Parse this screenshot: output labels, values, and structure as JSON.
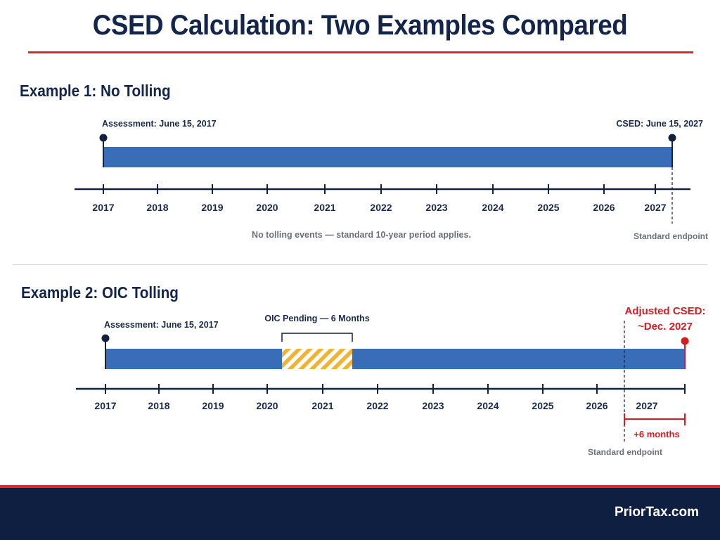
{
  "title": "CSED Calculation: Two Examples Compared",
  "brand": "PriorTax.com",
  "colors": {
    "bar": "#3a6db8",
    "axis": "#14213d",
    "accent_red": "#d01e24",
    "tolling_stripe": "#f2b233",
    "footer": "#0f1f42"
  },
  "example1": {
    "heading": "Example 1: No Tolling",
    "axis_years": [
      "2017",
      "2018",
      "2019",
      "2020",
      "2021",
      "2022",
      "2023",
      "2024",
      "2025",
      "2026",
      "2027"
    ],
    "assessment_label": "Assessment: June 15, 2017",
    "csed_label": "CSED: June 15, 2027",
    "note": "No tolling events — standard 10-year period applies.",
    "standard_endpoint_label": "Standard endpoint"
  },
  "example2": {
    "heading": "Example 2: OIC Tolling",
    "axis_years": [
      "2017",
      "2018",
      "2019",
      "2020",
      "2021",
      "2022",
      "2023",
      "2024",
      "2025",
      "2026",
      "2027"
    ],
    "assessment_label": "Assessment: June 15, 2017",
    "oic_label": "OIC Pending — 6 Months",
    "adjusted_csed_line1": "Adjusted CSED:",
    "adjusted_csed_line2": "~Dec. 2027",
    "extension_label": "+6 months",
    "standard_endpoint_label": "Standard endpoint"
  }
}
